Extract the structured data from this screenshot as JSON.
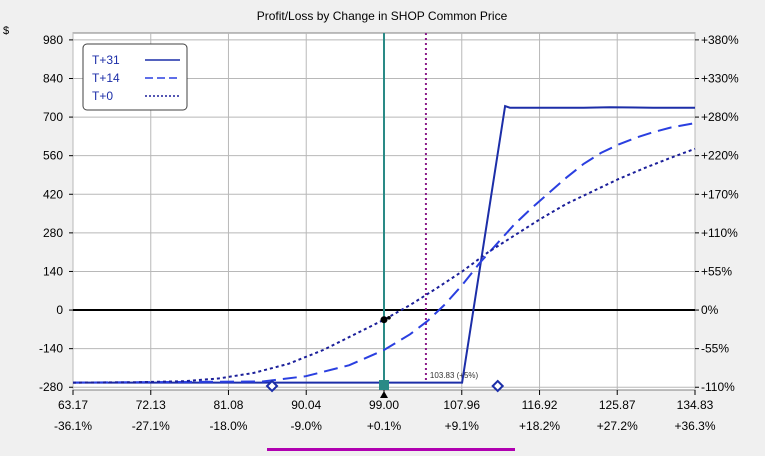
{
  "chart_data": {
    "type": "line",
    "title": "Profit/Loss by Change in SHOP Common Price",
    "ylabel": "$",
    "x_ticks": [
      63.17,
      72.13,
      81.08,
      90.04,
      99.0,
      107.96,
      116.92,
      125.87,
      134.83
    ],
    "x_tick_labels": [
      "63.17",
      "72.13",
      "81.08",
      "90.04",
      "99.00",
      "107.96",
      "116.92",
      "125.87",
      "134.83"
    ],
    "x_pct_labels": [
      "-36.1%",
      "-27.1%",
      "-18.0%",
      "-9.0%",
      "+0.1%",
      "+9.1%",
      "+18.2%",
      "+27.2%",
      "+36.3%"
    ],
    "xlim": [
      63.17,
      134.83
    ],
    "y_ticks": [
      980,
      840,
      700,
      560,
      420,
      280,
      140,
      0,
      -140,
      -280
    ],
    "y_tick_labels": [
      "980",
      "840",
      "700",
      "560",
      "420",
      "280",
      "140",
      "0",
      "-140",
      "-280"
    ],
    "y_right_labels": [
      "+380%",
      "+330%",
      "+280%",
      "+220%",
      "+170%",
      "+110%",
      "+55%",
      "0%",
      "-55%",
      "-110%"
    ],
    "ylim": [
      -290,
      1005
    ],
    "grid": true,
    "legend_position": "top-left",
    "series": [
      {
        "name": "T+31",
        "style": "solid",
        "color": "#1c2ea8",
        "x": [
          63.17,
          108.0,
          112.95,
          113.5,
          122.0,
          125.0,
          130.0,
          134.83
        ],
        "y": [
          -263,
          -263,
          740,
          734,
          734,
          736,
          734,
          734
        ]
      },
      {
        "name": "T+14",
        "style": "longdash",
        "color": "#2a3fe0",
        "x": [
          63.17,
          85.0,
          90.0,
          95.0,
          99.0,
          102.0,
          104.0,
          106.0,
          108.0,
          110.0,
          112.0,
          114.0,
          116.0,
          118.0,
          120.0,
          122.0,
          124.0,
          126.0,
          128.0,
          130.0,
          132.0,
          134.83
        ],
        "y": [
          -263,
          -259,
          -240,
          -200,
          -145,
          -88,
          -40,
          20,
          90,
          170,
          240,
          310,
          370,
          425,
          480,
          530,
          570,
          600,
          625,
          645,
          662,
          678
        ]
      },
      {
        "name": "T+0",
        "style": "shortdash",
        "color": "#1b1f9a",
        "x": [
          63.17,
          70.0,
          76.0,
          80.0,
          84.0,
          88.0,
          92.0,
          96.0,
          99.0,
          102.0,
          105.0,
          108.0,
          111.0,
          114.0,
          117.0,
          120.0,
          123.0,
          126.0,
          129.0,
          132.0,
          134.83
        ],
        "y": [
          -263,
          -262,
          -258,
          -248,
          -228,
          -195,
          -145,
          -82,
          -35,
          18,
          78,
          140,
          210,
          270,
          330,
          385,
          430,
          475,
          515,
          552,
          585
        ]
      }
    ],
    "current_price": 99.0,
    "target_price": 103.83,
    "target_label": "103.83 (+5%)",
    "breakeven_markers": [
      86.1,
      112.1
    ],
    "colors": {
      "current_price_line": "#2a8a86",
      "target_price_line": "#8a1a8a",
      "zero_line": "#000000",
      "grid": "#b8b8b8",
      "scrollbar": "#b000b0",
      "background": "#f0f0f0",
      "plot_background": "#ffffff"
    }
  }
}
